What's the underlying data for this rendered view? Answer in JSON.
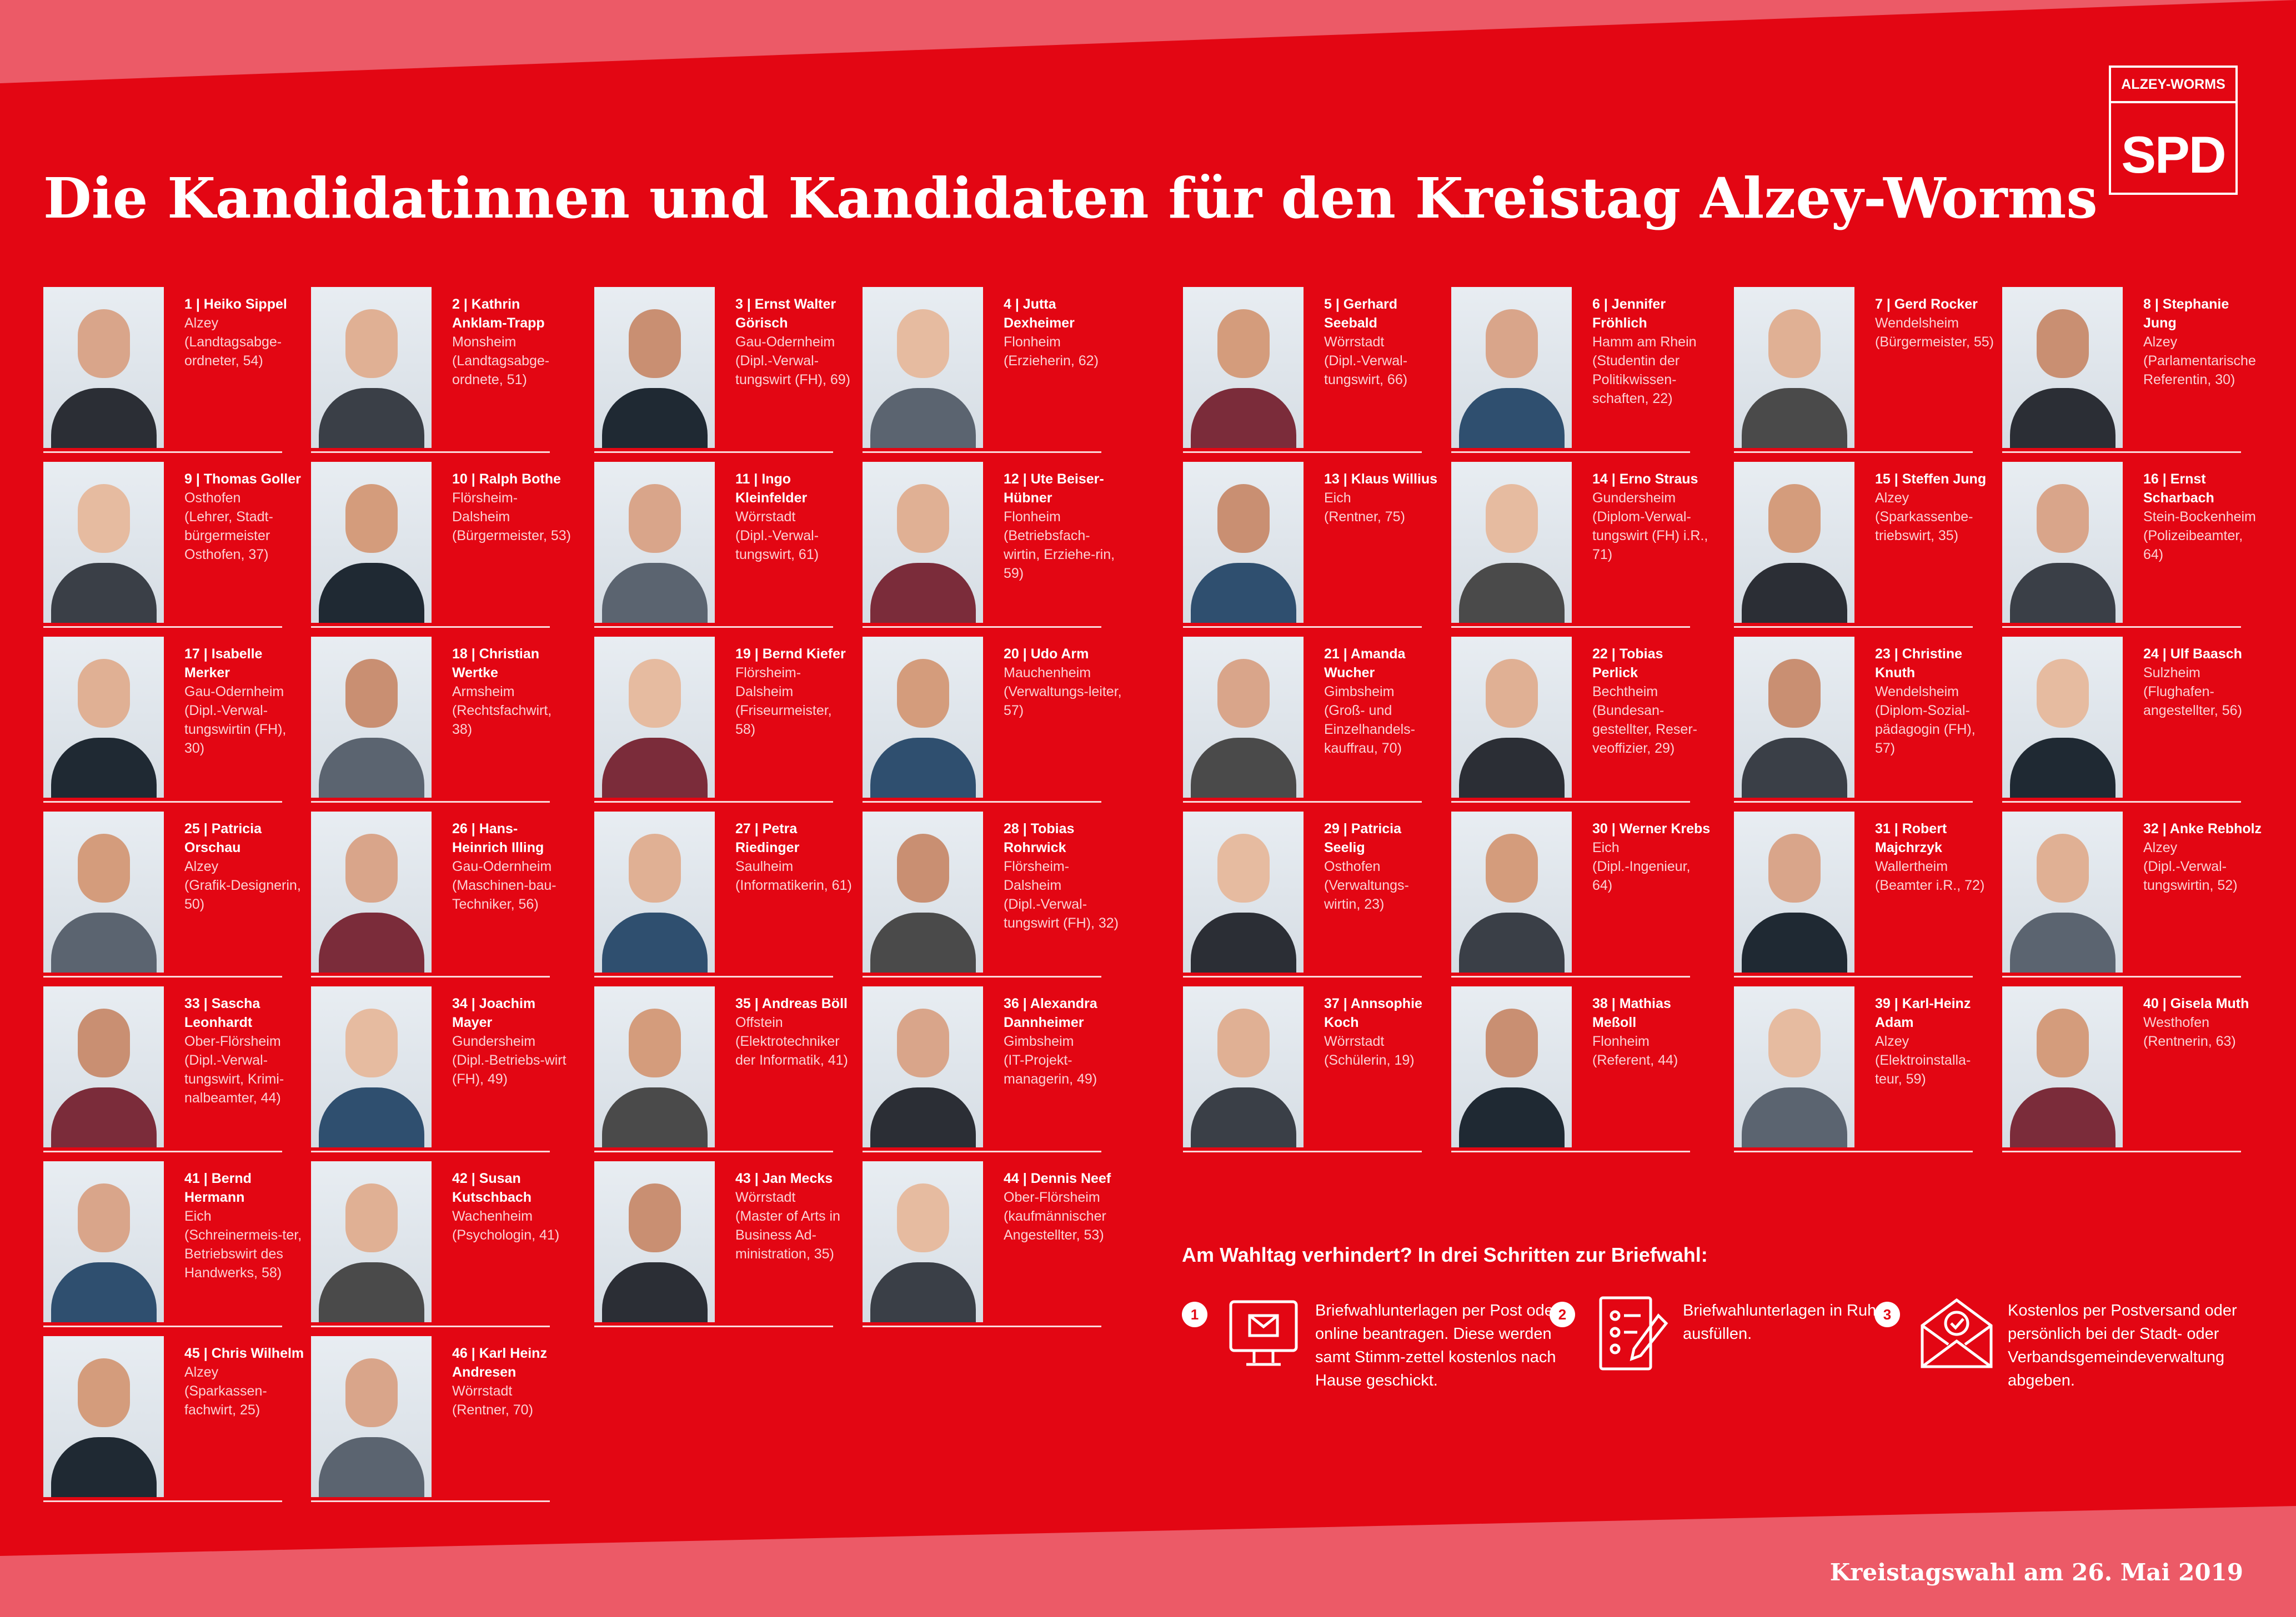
{
  "header": {
    "title": "Die Kandidatinnen und Kandidaten für den Kreistag Alzey-Worms"
  },
  "logo": {
    "region": "ALZEY-WORMS",
    "party": "SPD"
  },
  "colors": {
    "background": "#e30613",
    "band": "#ec5a67",
    "text": "#ffffff"
  },
  "candidates": [
    {
      "name": "1 | Heiko Sippel",
      "place": "Alzey",
      "detail": "(Landtagsabge-ordneter, 54)"
    },
    {
      "name": "2 | Kathrin Anklam-Trapp",
      "place": "Monsheim",
      "detail": "(Landtagsabge-ordnete, 51)"
    },
    {
      "name": "3 | Ernst Walter Görisch",
      "place": "Gau-Odernheim",
      "detail": "(Dipl.-Verwal-tungswirt (FH), 69)"
    },
    {
      "name": "4 | Jutta Dexheimer",
      "place": "Flonheim",
      "detail": "(Erzieherin, 62)"
    },
    {
      "name": "5 | Gerhard Seebald",
      "place": "Wörrstadt",
      "detail": "(Dipl.-Verwal-tungswirt, 66)"
    },
    {
      "name": "6 | Jennifer Fröhlich",
      "place": "Hamm am Rhein",
      "detail": "(Studentin der Politikwissen-schaften, 22)"
    },
    {
      "name": "7 | Gerd Rocker",
      "place": "Wendelsheim",
      "detail": "(Bürgermeister, 55)"
    },
    {
      "name": "8 | Stephanie Jung",
      "place": "Alzey",
      "detail": "(Parlamentarische Referentin, 30)"
    },
    {
      "name": "9 | Thomas Goller",
      "place": "Osthofen",
      "detail": "(Lehrer, Stadt-bürgermeister Osthofen, 37)"
    },
    {
      "name": "10 | Ralph Bothe",
      "place": "Flörsheim-Dalsheim",
      "detail": "(Bürgermeister, 53)"
    },
    {
      "name": "11 | Ingo Kleinfelder",
      "place": "Wörrstadt",
      "detail": "(Dipl.-Verwal-tungswirt, 61)"
    },
    {
      "name": "12 | Ute Beiser-Hübner",
      "place": "Flonheim",
      "detail": "(Betriebsfach-wirtin, Erziehe-rin, 59)"
    },
    {
      "name": "13 | Klaus Willius",
      "place": "Eich",
      "detail": "(Rentner, 75)"
    },
    {
      "name": "14 | Erno Straus",
      "place": "Gundersheim",
      "detail": "(Diplom-Verwal-tungswirt (FH) i.R., 71)"
    },
    {
      "name": "15 | Steffen Jung",
      "place": "Alzey",
      "detail": "(Sparkassenbe-triebswirt, 35)"
    },
    {
      "name": "16 | Ernst Scharbach",
      "place": "Stein-Bockenheim",
      "detail": "(Polizeibeamter, 64)"
    },
    {
      "name": "17 | Isabelle Merker",
      "place": "Gau-Odernheim",
      "detail": "(Dipl.-Verwal-tungswirtin (FH), 30)"
    },
    {
      "name": "18 | Christian Wertke",
      "place": "Armsheim",
      "detail": "(Rechtsfachwirt, 38)"
    },
    {
      "name": "19 | Bernd Kiefer",
      "place": "Flörsheim-Dalsheim",
      "detail": "(Friseurmeister, 58)"
    },
    {
      "name": "20 | Udo Arm",
      "place": "Mauchenheim",
      "detail": "(Verwaltungs-leiter, 57)"
    },
    {
      "name": "21 | Amanda Wucher",
      "place": "Gimbsheim",
      "detail": "(Groß- und Einzelhandels-kauffrau, 70)"
    },
    {
      "name": "22 | Tobias Perlick",
      "place": "Bechtheim",
      "detail": "(Bundesan-gestellter, Reser-veoffizier, 29)"
    },
    {
      "name": "23 | Christine Knuth",
      "place": "Wendelsheim",
      "detail": "(Diplom-Sozial-pädagogin (FH), 57)"
    },
    {
      "name": "24 | Ulf Baasch",
      "place": "Sulzheim",
      "detail": "(Flughafen-angestellter, 56)"
    },
    {
      "name": "25 | Patricia Orschau",
      "place": "Alzey",
      "detail": "(Grafik-Designerin, 50)"
    },
    {
      "name": "26 | Hans-Heinrich Illing",
      "place": "Gau-Odernheim",
      "detail": "(Maschinen-bau-Techniker, 56)"
    },
    {
      "name": "27 | Petra Riedinger",
      "place": "Saulheim",
      "detail": "(Informatikerin, 61)"
    },
    {
      "name": "28 | Tobias Rohrwick",
      "place": "Flörsheim-Dalsheim",
      "detail": "(Dipl.-Verwal-tungswirt (FH), 32)"
    },
    {
      "name": "29 | Patricia Seelig",
      "place": "Osthofen",
      "detail": "(Verwaltungs-wirtin, 23)"
    },
    {
      "name": "30 | Werner Krebs",
      "place": "Eich",
      "detail": "(Dipl.-Ingenieur, 64)"
    },
    {
      "name": "31 | Robert Majchrzyk",
      "place": "Wallertheim",
      "detail": "(Beamter i.R., 72)"
    },
    {
      "name": "32 | Anke Rebholz",
      "place": "Alzey",
      "detail": "(Dipl.-Verwal-tungswirtin, 52)"
    },
    {
      "name": "33 | Sascha Leonhardt",
      "place": "Ober-Flörsheim",
      "detail": "(Dipl.-Verwal-tungswirt, Krimi-nalbeamter, 44)"
    },
    {
      "name": "34 | Joachim Mayer",
      "place": "Gundersheim",
      "detail": "(Dipl.-Betriebs-wirt (FH), 49)"
    },
    {
      "name": "35 | Andreas Böll",
      "place": "Offstein",
      "detail": "(Elektrotechniker der Informatik, 41)"
    },
    {
      "name": "36 | Alexandra Dannheimer",
      "place": "Gimbsheim",
      "detail": "(IT-Projekt-managerin, 49)"
    },
    {
      "name": "37 | Annsophie Koch",
      "place": "Wörrstadt",
      "detail": "(Schülerin, 19)"
    },
    {
      "name": "38 | Mathias Meßoll",
      "place": "Flonheim",
      "detail": "(Referent, 44)"
    },
    {
      "name": "39 | Karl-Heinz Adam",
      "place": "Alzey",
      "detail": "(Elektroinstalla-teur, 59)"
    },
    {
      "name": "40 | Gisela Muth",
      "place": "Westhofen",
      "detail": "(Rentnerin, 63)"
    },
    {
      "name": "41 | Bernd Hermann",
      "place": "Eich",
      "detail": "(Schreinermeis-ter, Betriebswirt des Handwerks, 58)"
    },
    {
      "name": "42 | Susan Kutschbach",
      "place": "Wachenheim",
      "detail": "(Psychologin, 41)"
    },
    {
      "name": "43 | Jan Mecks",
      "place": "Wörrstadt",
      "detail": "(Master of Arts in Business Ad-ministration, 35)"
    },
    {
      "name": "44 | Dennis Neef",
      "place": "Ober-Flörsheim",
      "detail": "(kaufmännischer Angestellter, 53)"
    },
    {
      "name": "45 | Chris Wilhelm",
      "place": "Alzey",
      "detail": "(Sparkassen-fachwirt, 25)"
    },
    {
      "name": "46 | Karl Heinz Andresen",
      "place": "Wörrstadt",
      "detail": "(Rentner, 70)"
    }
  ],
  "briefwahl": {
    "heading": "Am Wahltag verhindert? In drei Schritten zur Briefwahl:",
    "steps": [
      {
        "number": "1",
        "icon": "computer-mail-icon",
        "text": "Briefwahlunterlagen per Post oder online beantragen. Diese werden samt Stimm-zettel kostenlos nach Hause geschickt."
      },
      {
        "number": "2",
        "icon": "form-pen-icon",
        "text": "Briefwahlunterlagen in Ruhe ausfüllen."
      },
      {
        "number": "3",
        "icon": "envelope-check-icon",
        "text": "Kostenlos per Postversand oder persönlich bei der Stadt- oder Verbandsgemeindeverwaltung abgeben."
      }
    ]
  },
  "footer": {
    "text": "Kreistagswahl am 26. Mai 2019"
  }
}
